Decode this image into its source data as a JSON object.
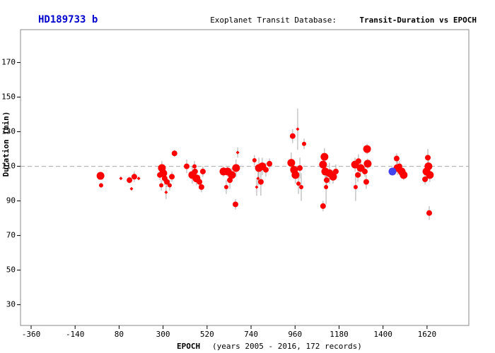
{
  "chart_data": {
    "type": "scatter",
    "title": "HD189733 b",
    "subtitle_label": "Exoplanet Transit Database:",
    "subtitle": "Transit-Duration vs EPOCH",
    "x_label": "EPOCH",
    "x_note": "(years 2005 - 2016, 172 records)",
    "y_label": "Duration (min)",
    "xlim": [
      -413,
      1829
    ],
    "ylim": [
      18,
      189
    ],
    "xticks": [
      -360,
      -140,
      80,
      300,
      520,
      740,
      960,
      1180,
      1400,
      1620
    ],
    "yticks": [
      30,
      50,
      70,
      90,
      110,
      130,
      150,
      170
    ],
    "reference_line": 110,
    "series": [
      {
        "color": "#ff0000",
        "x": [
          -13,
          -10,
          89,
          132,
          142,
          156,
          178,
          294,
          301,
          284,
          308,
          319,
          333,
          315,
          344,
          357,
          291,
          418,
          457,
          446,
          467,
          482,
          492,
          499,
          460,
          602,
          623,
          644,
          616,
          634,
          665,
          662,
          673,
          757,
          779,
          796,
          814,
          832,
          789,
          768,
          775,
          948,
          941,
          955,
          962,
          977,
          973,
          1005,
          984,
          991,
          1107,
          1100,
          1111,
          1132,
          1150,
          1118,
          1100,
          1115,
          1164,
          1260,
          1277,
          1288,
          1309,
          1320,
          1323,
          1316,
          1263,
          1274,
          1468,
          1472,
          1493,
          1503,
          1482,
          1624,
          1627,
          1617,
          1634,
          1610,
          1631
        ],
        "values": [
          104.5,
          99,
          103,
          102,
          97,
          104,
          103,
          109,
          106,
          105,
          103,
          101,
          99,
          95,
          104,
          117.5,
          99,
          110,
          110,
          105,
          103,
          101,
          98,
          107,
          107,
          107,
          107,
          105,
          98,
          102,
          109,
          88,
          118,
          113.5,
          109,
          110,
          108,
          111.5,
          101,
          98,
          103,
          127.5,
          112,
          108,
          105,
          100,
          131.5,
          123,
          109,
          98,
          115.5,
          111,
          107,
          106,
          104,
          102,
          87,
          98,
          107,
          111,
          113,
          109,
          107,
          120,
          111.5,
          101,
          98,
          105,
          114.5,
          109,
          107,
          105,
          110,
          115,
          110,
          107,
          105,
          102.5,
          83
        ],
        "errors": [
          2,
          1.5,
          1,
          2,
          1,
          3,
          1,
          4,
          5,
          3,
          4,
          3,
          3,
          4,
          3,
          2,
          3,
          4,
          3,
          5,
          4,
          4,
          3,
          3,
          4,
          3,
          3,
          4,
          4,
          5,
          5,
          3,
          3,
          3,
          6,
          5,
          4,
          3,
          8,
          5,
          4,
          4,
          6,
          5,
          5,
          6,
          12,
          3,
          6,
          8,
          5,
          6,
          6,
          6,
          4,
          5,
          3,
          10,
          4,
          4,
          4,
          5,
          3,
          3,
          3,
          4,
          8,
          4,
          3,
          4,
          3,
          3,
          3,
          5,
          4,
          4,
          4,
          3,
          4
        ],
        "sizes": [
          4,
          2,
          1,
          3,
          1,
          3,
          1,
          4,
          4,
          3,
          3,
          3,
          2,
          1,
          3,
          3,
          2,
          3,
          2,
          4,
          4,
          3,
          3,
          3,
          3,
          4,
          4,
          4,
          2,
          3,
          4,
          3,
          1,
          2,
          4,
          4,
          3,
          3,
          3,
          1,
          1,
          3,
          4,
          4,
          4,
          2,
          1,
          2,
          3,
          2,
          4,
          4,
          4,
          4,
          4,
          3,
          3,
          2,
          3,
          4,
          3,
          4,
          3,
          4,
          4,
          3,
          2,
          3,
          3,
          4,
          4,
          4,
          3,
          3,
          4,
          4,
          4,
          3,
          3
        ]
      },
      {
        "color": "#4444ee",
        "x": [
          1447
        ],
        "values": [
          107
        ],
        "errors": [
          2
        ],
        "sizes": [
          4
        ]
      }
    ]
  }
}
